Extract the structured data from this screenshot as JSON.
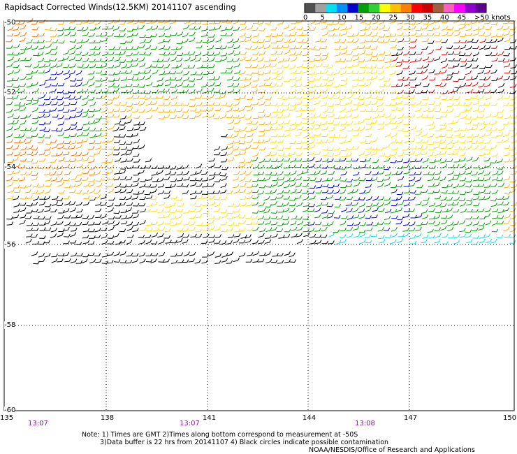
{
  "title": "Rapidsact Corrected Winds(12.5KM) 20141107 ascending",
  "legend": {
    "labels": [
      "0",
      "5",
      "10",
      "15",
      "20",
      "25",
      "30",
      "35",
      "40",
      "45",
      ">50 knots"
    ],
    "colors": [
      "#505050",
      "#a0a0a0",
      "#00e0f0",
      "#0090ff",
      "#0000d0",
      "#00a000",
      "#30d030",
      "#ffff00",
      "#ffc000",
      "#ff8000",
      "#ff0000",
      "#d00000",
      "#a06040",
      "#ff60c0",
      "#ff00ff",
      "#9000d0",
      "#600090"
    ]
  },
  "lat_labels": [
    "-50",
    "-52",
    "-54",
    "-56",
    "-58",
    "-60"
  ],
  "lon_labels": [
    "135",
    "138",
    "141",
    "144",
    "147",
    "150"
  ],
  "times": [
    "13:07",
    "13:07",
    "13:08"
  ],
  "notes": {
    "line1": "Note: 1) Times are GMT 2)Times along bottom correspond to measurement at -50S",
    "line2": "3)Data buffer is 22 hrs from 20141107 4) Black circles indicate possible contamination",
    "credit": "NOAA/NESDIS/Office of Research and Applications"
  },
  "palette": {
    "calm": "#000000",
    "light": "#303030",
    "moderate": "#ffe000",
    "fresh": "#ffb000",
    "strong": "#ff7000",
    "gale": "#d05000",
    "green": "#00a000",
    "blue": "#0000d0",
    "cyan": "#00e0f0",
    "red": "#e00000",
    "grid": "#000000"
  }
}
